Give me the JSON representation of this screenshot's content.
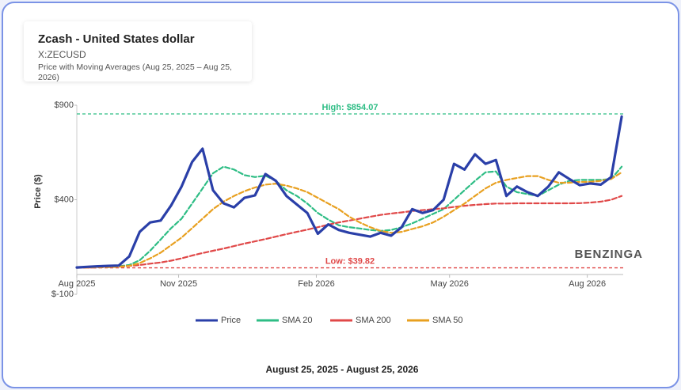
{
  "chart_data": {
    "type": "line",
    "title": "Zcash - United States dollar",
    "symbol": "X:ZECUSD",
    "subtitle": "Price with Moving Averages (Aug 25, 2025 – Aug 25, 2026)",
    "ylabel": "Price ($)",
    "watermark": "BENZINGA",
    "footer": "August 25, 2025 - August 25, 2026",
    "x": [
      "2025-08-25",
      "2025-09-01",
      "2025-09-08",
      "2025-09-15",
      "2025-09-22",
      "2025-09-29",
      "2025-10-06",
      "2025-10-13",
      "2025-10-20",
      "2025-10-27",
      "2025-11-03",
      "2025-11-10",
      "2025-11-17",
      "2025-11-24",
      "2025-12-01",
      "2025-12-08",
      "2025-12-15",
      "2025-12-22",
      "2025-12-29",
      "2026-01-05",
      "2026-01-12",
      "2026-01-19",
      "2026-01-26",
      "2026-02-02",
      "2026-02-09",
      "2026-02-16",
      "2026-02-23",
      "2026-03-02",
      "2026-03-09",
      "2026-03-16",
      "2026-03-23",
      "2026-03-30",
      "2026-04-06",
      "2026-04-13",
      "2026-04-20",
      "2026-04-27",
      "2026-05-04",
      "2026-05-11",
      "2026-05-18",
      "2026-05-25",
      "2026-06-01",
      "2026-06-08",
      "2026-06-15",
      "2026-06-22",
      "2026-06-29",
      "2026-07-06",
      "2026-07-13",
      "2026-07-20",
      "2026-07-27",
      "2026-08-03",
      "2026-08-10",
      "2026-08-17",
      "2026-08-24"
    ],
    "series": [
      {
        "name": "Price",
        "color": "#2a3fa8",
        "dash": false,
        "values": [
          42,
          45,
          48,
          50,
          52,
          100,
          230,
          280,
          290,
          370,
          470,
          600,
          670,
          450,
          381,
          360,
          410,
          423,
          536,
          500,
          420,
          375,
          330,
          220,
          270,
          240,
          225,
          215,
          205,
          225,
          210,
          255,
          350,
          330,
          345,
          400,
          590,
          560,
          640,
          590,
          610,
          420,
          470,
          440,
          420,
          470,
          545,
          510,
          477,
          486,
          480,
          520,
          840
        ]
      },
      {
        "name": "SMA 20",
        "color": "#2ebd85",
        "dash": true,
        "values": [
          42,
          43,
          44,
          46,
          48,
          55,
          80,
          130,
          190,
          250,
          300,
          380,
          460,
          540,
          575,
          560,
          530,
          520,
          527,
          500,
          450,
          420,
          380,
          330,
          295,
          265,
          255,
          248,
          240,
          235,
          240,
          255,
          275,
          300,
          325,
          350,
          400,
          450,
          500,
          545,
          550,
          470,
          440,
          430,
          420,
          450,
          480,
          500,
          505,
          505,
          505,
          510,
          575
        ]
      },
      {
        "name": "SMA 200",
        "color": "#e04848",
        "dash": true,
        "values": [
          40,
          41,
          42,
          44,
          46,
          50,
          55,
          62,
          68,
          78,
          90,
          105,
          118,
          130,
          142,
          155,
          168,
          180,
          192,
          205,
          218,
          230,
          242,
          255,
          268,
          280,
          290,
          300,
          310,
          320,
          327,
          333,
          340,
          345,
          350,
          355,
          362,
          368,
          373,
          377,
          380,
          380,
          381,
          381,
          381,
          381,
          381,
          381,
          382,
          385,
          390,
          400,
          420
        ]
      },
      {
        "name": "SMA 50",
        "color": "#e8a020",
        "dash": true,
        "values": [
          42,
          42,
          43,
          44,
          45,
          50,
          65,
          90,
          120,
          160,
          200,
          250,
          300,
          350,
          390,
          420,
          445,
          465,
          480,
          485,
          475,
          460,
          440,
          410,
          380,
          350,
          310,
          280,
          255,
          235,
          225,
          230,
          245,
          260,
          280,
          310,
          345,
          380,
          420,
          460,
          490,
          505,
          515,
          525,
          525,
          505,
          490,
          490,
          494,
          495,
          500,
          510,
          545
        ]
      }
    ],
    "xlim": [
      "2025-08-25",
      "2026-08-25"
    ],
    "xticks": [
      {
        "value": "2025-08-25",
        "label": "Aug 2025"
      },
      {
        "value": "2025-11-01",
        "label": "Nov 2025"
      },
      {
        "value": "2026-02-01",
        "label": "Feb 2026"
      },
      {
        "value": "2026-05-01",
        "label": "May 2026"
      },
      {
        "value": "2026-08-01",
        "label": "Aug 2026"
      }
    ],
    "ylim": [
      -100,
      900
    ],
    "yticks": [
      {
        "value": -100,
        "label": "$-100"
      },
      {
        "value": 400,
        "label": "$400"
      },
      {
        "value": 900,
        "label": "$900"
      }
    ],
    "annotations": [
      {
        "text": "High: $854.07",
        "value": 854.07,
        "color": "#2ebd85"
      },
      {
        "text": "Low: $39.82",
        "value": 39.82,
        "color": "#e04848"
      }
    ],
    "grid": false,
    "legend": "bottom"
  }
}
